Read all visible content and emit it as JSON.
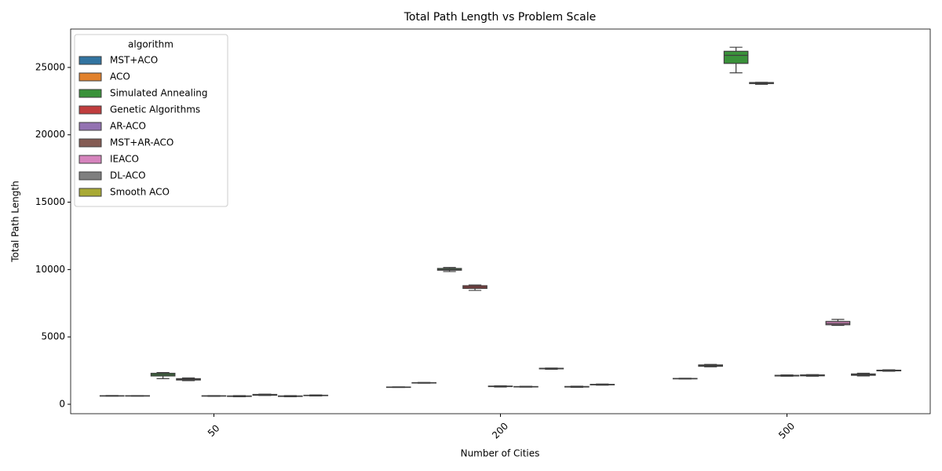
{
  "chart_data": {
    "type": "box",
    "title": "Total Path Length vs Problem Scale",
    "x_label": "Number of Cities",
    "y_label": "Total Path Length",
    "legend_title": "algorithm",
    "legend_position": "upper left",
    "categories": [
      "50",
      "200",
      "500"
    ],
    "ylim": [
      -700,
      27850
    ],
    "yticks": [
      0,
      5000,
      10000,
      15000,
      20000,
      25000
    ],
    "series": [
      {
        "name": "MST+ACO",
        "color": "#3274a1",
        "values": [
          {
            "min": 600,
            "q1": 615,
            "median": 625,
            "q3": 635,
            "max": 650
          },
          {
            "min": 1250,
            "q1": 1260,
            "median": 1270,
            "q3": 1280,
            "max": 1290
          },
          {
            "min": 1880,
            "q1": 1890,
            "median": 1900,
            "q3": 1915,
            "max": 1930
          }
        ]
      },
      {
        "name": "ACO",
        "color": "#e1812c",
        "values": [
          {
            "min": 605,
            "q1": 615,
            "median": 625,
            "q3": 635,
            "max": 645
          },
          {
            "min": 1560,
            "q1": 1575,
            "median": 1590,
            "q3": 1605,
            "max": 1620
          },
          {
            "min": 2780,
            "q1": 2820,
            "median": 2870,
            "q3": 2920,
            "max": 2960
          }
        ]
      },
      {
        "name": "Simulated Annealing",
        "color": "#3a923a",
        "values": [
          {
            "min": 1900,
            "q1": 2100,
            "median": 2200,
            "q3": 2300,
            "max": 2350
          },
          {
            "min": 9850,
            "q1": 9950,
            "median": 10000,
            "q3": 10080,
            "max": 10150
          },
          {
            "min": 24600,
            "q1": 25300,
            "median": 25900,
            "q3": 26200,
            "max": 26500
          }
        ]
      },
      {
        "name": "Genetic Algorithms",
        "color": "#c03d3e",
        "values": [
          {
            "min": 1750,
            "q1": 1800,
            "median": 1850,
            "q3": 1900,
            "max": 1950
          },
          {
            "min": 8450,
            "q1": 8600,
            "median": 8700,
            "q3": 8800,
            "max": 8850
          },
          {
            "min": 23750,
            "q1": 23800,
            "median": 23830,
            "q3": 23880,
            "max": 23900
          }
        ]
      },
      {
        "name": "AR-ACO",
        "color": "#9372b2",
        "values": [
          {
            "min": 590,
            "q1": 605,
            "median": 615,
            "q3": 630,
            "max": 640
          },
          {
            "min": 1280,
            "q1": 1310,
            "median": 1330,
            "q3": 1350,
            "max": 1370
          },
          {
            "min": 2080,
            "q1": 2100,
            "median": 2130,
            "q3": 2150,
            "max": 2180
          }
        ]
      },
      {
        "name": "MST+AR-ACO",
        "color": "#845b53",
        "values": [
          {
            "min": 560,
            "q1": 580,
            "median": 600,
            "q3": 620,
            "max": 640
          },
          {
            "min": 1270,
            "q1": 1285,
            "median": 1300,
            "q3": 1315,
            "max": 1330
          },
          {
            "min": 2080,
            "q1": 2110,
            "median": 2150,
            "q3": 2180,
            "max": 2200
          }
        ]
      },
      {
        "name": "IEACO",
        "color": "#d684bd",
        "values": [
          {
            "min": 650,
            "q1": 670,
            "median": 700,
            "q3": 730,
            "max": 750
          },
          {
            "min": 2600,
            "q1": 2630,
            "median": 2650,
            "q3": 2670,
            "max": 2690
          },
          {
            "min": 5850,
            "q1": 5900,
            "median": 6000,
            "q3": 6150,
            "max": 6300
          }
        ]
      },
      {
        "name": "DL-ACO",
        "color": "#7f7f7f",
        "values": [
          {
            "min": 560,
            "q1": 580,
            "median": 600,
            "q3": 620,
            "max": 640
          },
          {
            "min": 1260,
            "q1": 1280,
            "median": 1300,
            "q3": 1320,
            "max": 1340
          },
          {
            "min": 2100,
            "q1": 2150,
            "median": 2200,
            "q3": 2250,
            "max": 2300
          }
        ]
      },
      {
        "name": "Smooth ACO",
        "color": "#a9aa35",
        "values": [
          {
            "min": 620,
            "q1": 640,
            "median": 650,
            "q3": 670,
            "max": 690
          },
          {
            "min": 1420,
            "q1": 1440,
            "median": 1460,
            "q3": 1480,
            "max": 1500
          },
          {
            "min": 2450,
            "q1": 2480,
            "median": 2500,
            "q3": 2530,
            "max": 2560
          }
        ]
      }
    ]
  }
}
